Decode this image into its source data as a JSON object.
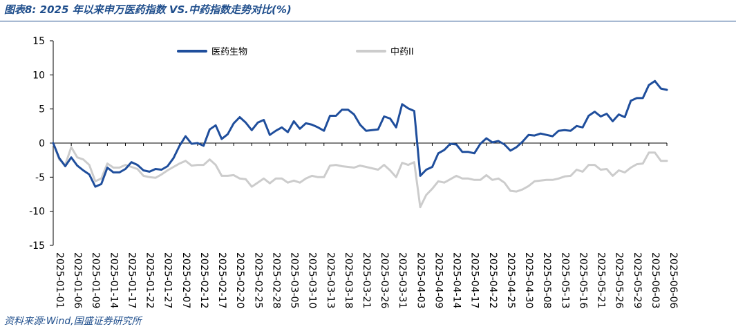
{
  "figure": {
    "title": "图表8:  2025 年以来申万医药指数 VS.中药指数走势对比(%)",
    "source": "资料来源:Wind,国盛证券研究所"
  },
  "chart_data": {
    "type": "line",
    "ylim": [
      -15,
      15
    ],
    "yticks": [
      15,
      10,
      5,
      0,
      -5,
      -10,
      -15
    ],
    "x_tick_labels": [
      "2025-01-01",
      "2025-01-06",
      "2025-01-09",
      "2025-01-14",
      "2025-01-17",
      "2025-01-22",
      "2025-01-27",
      "2025-02-07",
      "2025-02-12",
      "2025-02-17",
      "2025-02-20",
      "2025-02-25",
      "2025-02-28",
      "2025-03-05",
      "2025-03-10",
      "2025-03-13",
      "2025-03-18",
      "2025-03-21",
      "2025-03-26",
      "2025-03-31",
      "2025-04-03",
      "2025-04-09",
      "2025-04-14",
      "2025-04-17",
      "2025-04-22",
      "2025-04-25",
      "2025-04-30",
      "2025-05-08",
      "2025-05-13",
      "2025-05-16",
      "2025-05-21",
      "2025-05-26",
      "2025-05-29",
      "2025-06-03",
      "2025-06-06"
    ],
    "x_tick_positions": [
      0,
      3,
      6,
      9,
      12,
      15,
      18,
      21,
      24,
      27,
      30,
      33,
      36,
      39,
      42,
      45,
      48,
      51,
      54,
      57,
      60,
      63,
      66,
      69,
      72,
      75,
      78,
      81,
      84,
      87,
      90,
      93,
      96,
      99,
      102
    ],
    "legend_position": "top",
    "series": [
      {
        "name": "医药生物",
        "color": "#1f4e9c",
        "values": [
          0,
          -2.2,
          -3.4,
          -2.1,
          -3.3,
          -4.0,
          -4.6,
          -6.4,
          -6.0,
          -3.6,
          -4.3,
          -4.3,
          -3.8,
          -2.8,
          -3.2,
          -4.0,
          -4.2,
          -3.8,
          -3.9,
          -3.4,
          -2.2,
          -0.4,
          1.0,
          -0.1,
          0.0,
          -0.4,
          2.0,
          2.6,
          0.6,
          1.3,
          2.9,
          3.8,
          3.0,
          1.9,
          3.0,
          3.4,
          1.2,
          1.8,
          2.3,
          1.6,
          3.2,
          2.1,
          2.9,
          2.7,
          2.3,
          1.8,
          4.0,
          4.0,
          4.9,
          4.9,
          4.2,
          2.7,
          1.8,
          1.9,
          2.0,
          3.9,
          3.6,
          2.3,
          5.7,
          5.1,
          4.7,
          -4.8,
          -3.9,
          -3.5,
          -1.5,
          -1.0,
          -0.1,
          -0.2,
          -1.3,
          -1.3,
          -1.5,
          -0.1,
          0.7,
          0.1,
          0.3,
          -0.2,
          -1.1,
          -0.6,
          0.2,
          1.2,
          1.1,
          1.4,
          1.2,
          1.0,
          1.8,
          1.9,
          1.8,
          2.5,
          2.3,
          4.0,
          4.6,
          3.9,
          4.3,
          3.2,
          4.2,
          3.8,
          6.2,
          6.6,
          6.6,
          8.5,
          9.1,
          8.0,
          7.8
        ]
      },
      {
        "name": "中药II",
        "color": "#cccccc",
        "values": [
          0,
          -2.4,
          -3.2,
          -0.6,
          -2.1,
          -2.4,
          -3.2,
          -5.6,
          -5.2,
          -3.0,
          -3.6,
          -3.6,
          -3.2,
          -3.5,
          -3.8,
          -4.8,
          -5.0,
          -5.1,
          -4.6,
          -4.0,
          -3.5,
          -3.0,
          -2.6,
          -3.3,
          -3.2,
          -3.2,
          -2.4,
          -3.2,
          -4.8,
          -4.8,
          -4.7,
          -5.2,
          -5.3,
          -6.4,
          -5.8,
          -5.2,
          -5.9,
          -5.2,
          -5.2,
          -5.8,
          -5.5,
          -5.8,
          -5.2,
          -4.8,
          -5.0,
          -5.0,
          -3.3,
          -3.2,
          -3.4,
          -3.5,
          -3.6,
          -3.3,
          -3.5,
          -3.7,
          -3.9,
          -3.2,
          -4.0,
          -5.0,
          -2.9,
          -3.2,
          -2.8,
          -9.4,
          -7.6,
          -6.7,
          -5.6,
          -5.8,
          -5.3,
          -4.8,
          -5.2,
          -5.2,
          -5.4,
          -5.4,
          -4.7,
          -5.4,
          -5.2,
          -5.8,
          -7.0,
          -7.1,
          -6.8,
          -6.3,
          -5.6,
          -5.5,
          -5.4,
          -5.4,
          -5.2,
          -4.9,
          -4.8,
          -3.9,
          -4.2,
          -3.2,
          -3.2,
          -3.9,
          -3.8,
          -4.8,
          -4.0,
          -4.3,
          -3.6,
          -3.1,
          -3.0,
          -1.4,
          -1.4,
          -2.6,
          -2.6
        ]
      }
    ]
  }
}
